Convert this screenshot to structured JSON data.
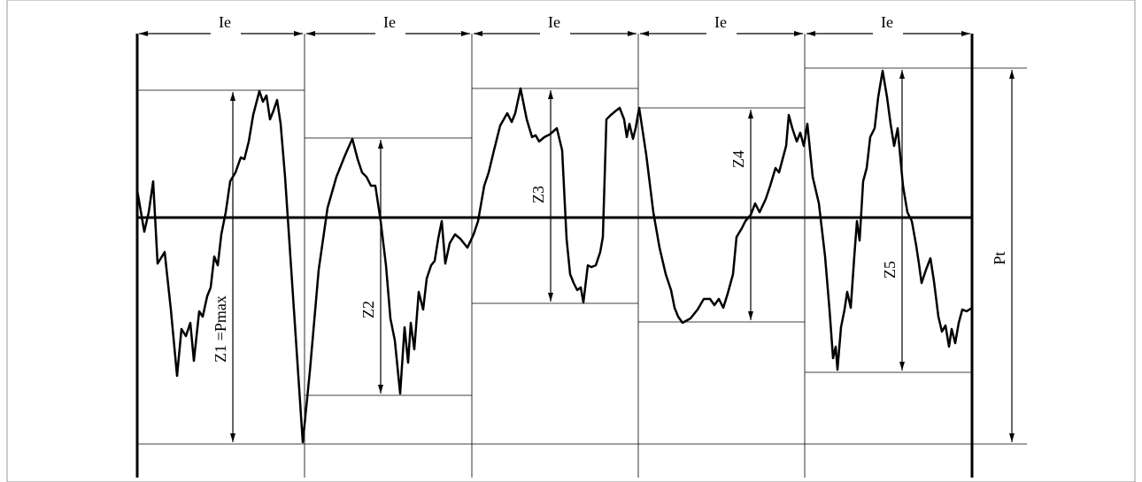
{
  "segments": [
    {
      "label": "Ie"
    },
    {
      "label": "Ie"
    },
    {
      "label": "Ie"
    },
    {
      "label": "Ie"
    },
    {
      "label": "Ie"
    }
  ],
  "heights": [
    {
      "label": "Z1 =Pmax"
    },
    {
      "label": "Z2"
    },
    {
      "label": "Z3"
    },
    {
      "label": "Z4"
    },
    {
      "label": "Z5"
    }
  ],
  "total": {
    "label": "Pt"
  }
}
